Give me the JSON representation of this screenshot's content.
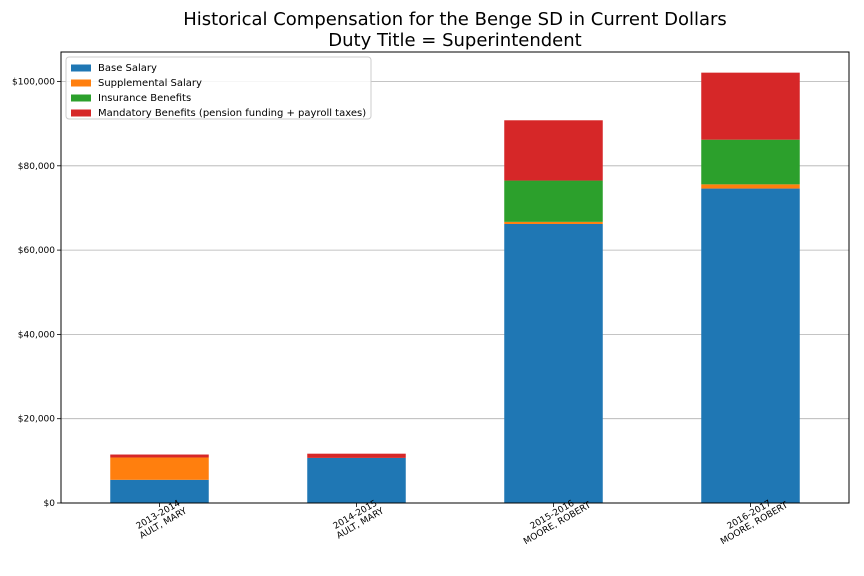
{
  "chart_data": {
    "type": "bar",
    "stacked": true,
    "title": "Historical Compensation for the Benge SD in Current Dollars",
    "subtitle": "Duty Title = Superintendent",
    "xlabel": "",
    "ylabel": "",
    "ylim": [
      0,
      107000
    ],
    "yticks": [
      0,
      20000,
      40000,
      60000,
      80000,
      100000
    ],
    "ytick_labels": [
      "$0",
      "$20,000",
      "$40,000",
      "$60,000",
      "$80,000",
      "$100,000"
    ],
    "grid": "horizontal",
    "legend_position": "top-left",
    "categories": [
      [
        "2013-2014",
        "AULT, MARY"
      ],
      [
        "2014-2015",
        "AULT, MARY"
      ],
      [
        "2015-2016",
        "MOORE, ROBERT"
      ],
      [
        "2016-2017",
        "MOORE, ROBERT"
      ]
    ],
    "series": [
      {
        "name": "Base Salary",
        "color": "#1f77b4",
        "values": [
          5500,
          10700,
          66200,
          74600
        ]
      },
      {
        "name": "Supplemental Salary",
        "color": "#ff7f0e",
        "values": [
          5300,
          0,
          500,
          1000
        ]
      },
      {
        "name": "Insurance Benefits",
        "color": "#2ca02c",
        "values": [
          0,
          0,
          9800,
          10600
        ]
      },
      {
        "name": "Mandatory Benefits (pension funding + payroll taxes)",
        "color": "#d62728",
        "values": [
          700,
          1000,
          14300,
          15900
        ]
      }
    ]
  }
}
